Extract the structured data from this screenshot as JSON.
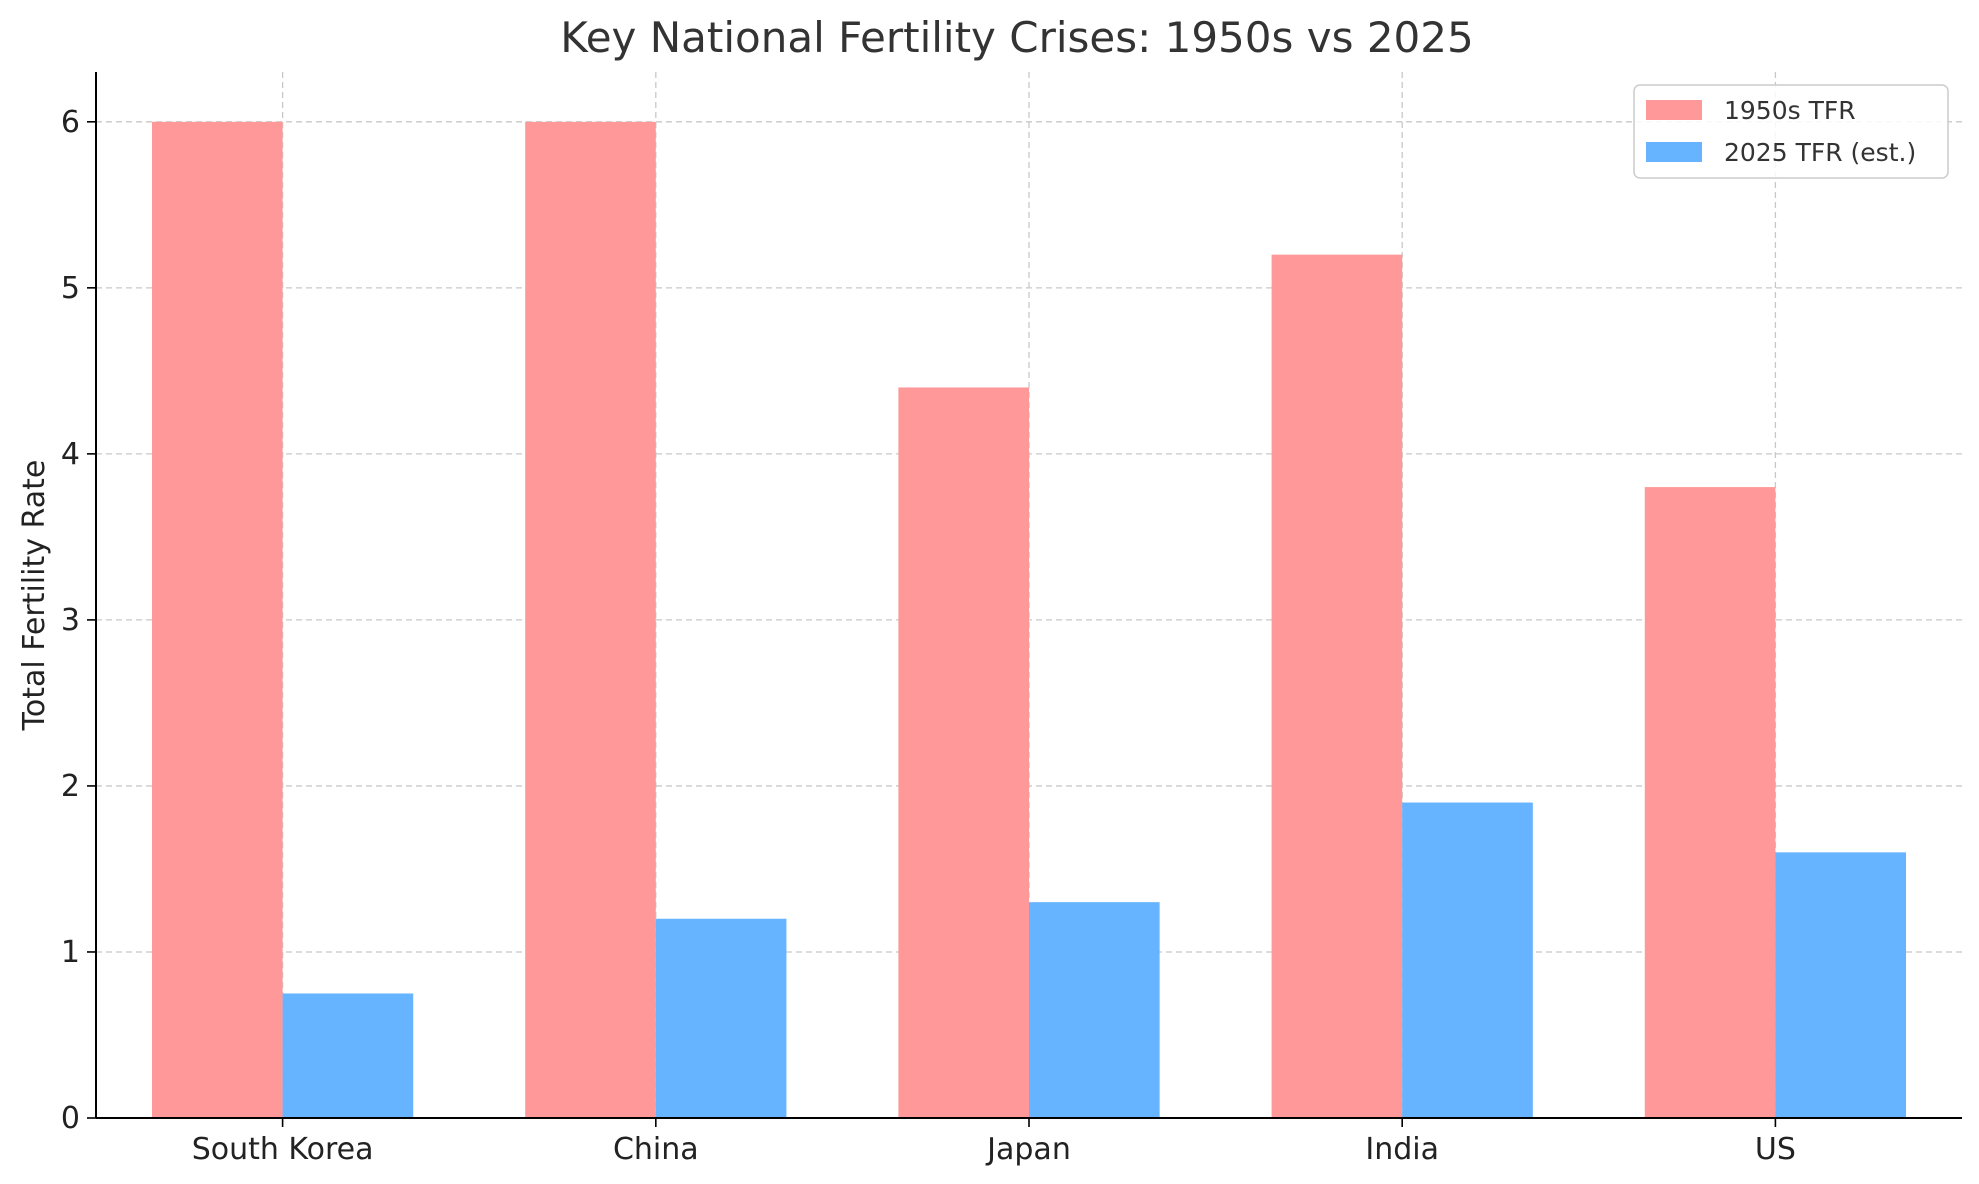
{
  "chart_data": {
    "type": "bar",
    "title": "Key National Fertility Crises: 1950s vs 2025",
    "xlabel": "",
    "ylabel": "Total Fertility Rate",
    "categories": [
      "South Korea",
      "China",
      "Japan",
      "India",
      "US"
    ],
    "series": [
      {
        "name": "1950s TFR",
        "values": [
          6.0,
          6.0,
          4.4,
          5.2,
          3.8
        ],
        "color": "#ff9999"
      },
      {
        "name": "2025 TFR (est.)",
        "values": [
          0.75,
          1.2,
          1.3,
          1.9,
          1.6
        ],
        "color": "#66b3ff"
      }
    ],
    "ylim": [
      0,
      6.3
    ],
    "yticks": [
      0,
      1,
      2,
      3,
      4,
      5,
      6
    ],
    "grid": true,
    "grid_style": "dashed",
    "legend_position": "top-right"
  }
}
